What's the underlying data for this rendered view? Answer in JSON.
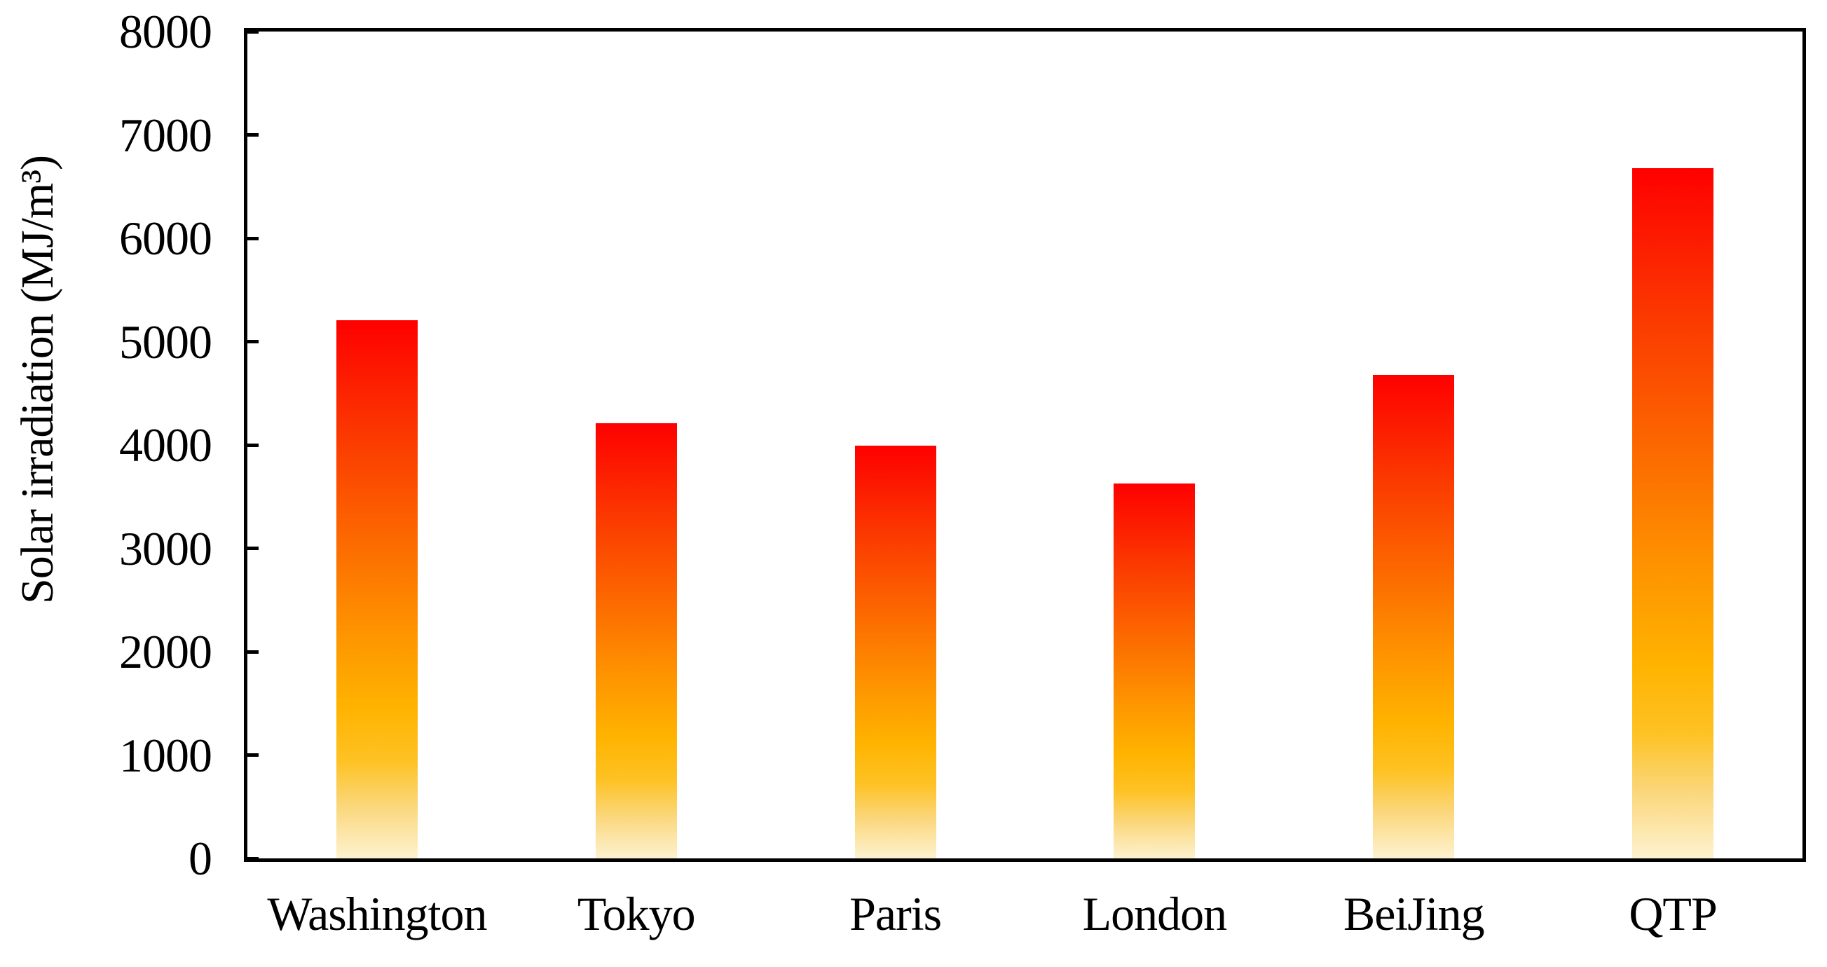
{
  "chart_data": {
    "type": "bar",
    "title": "",
    "xlabel": "",
    "ylabel": "Solar irradiation (MJ/m³)",
    "categories": [
      "Washington",
      "Tokyo",
      "Paris",
      "London",
      "BeiJing",
      "QTP"
    ],
    "values": [
      5210,
      4210,
      3990,
      3630,
      4680,
      6680
    ],
    "ylim": [
      0,
      8000
    ],
    "yticks": [
      0,
      1000,
      2000,
      3000,
      4000,
      5000,
      6000,
      7000,
      8000
    ],
    "grid": false,
    "legend": false,
    "background_color": "#ffffff",
    "axis_color": "#000000",
    "tick_style": "inward",
    "bar_gradient_stops": [
      {
        "pos": 0.0,
        "color": "#fe0000"
      },
      {
        "pos": 0.22,
        "color": "#fb3a00"
      },
      {
        "pos": 0.42,
        "color": "#fc6c00"
      },
      {
        "pos": 0.58,
        "color": "#fe9400"
      },
      {
        "pos": 0.72,
        "color": "#ffb300"
      },
      {
        "pos": 0.82,
        "color": "#fec224"
      },
      {
        "pos": 0.9,
        "color": "#fbd678"
      },
      {
        "pos": 1.0,
        "color": "#fdf2d0"
      }
    ]
  }
}
